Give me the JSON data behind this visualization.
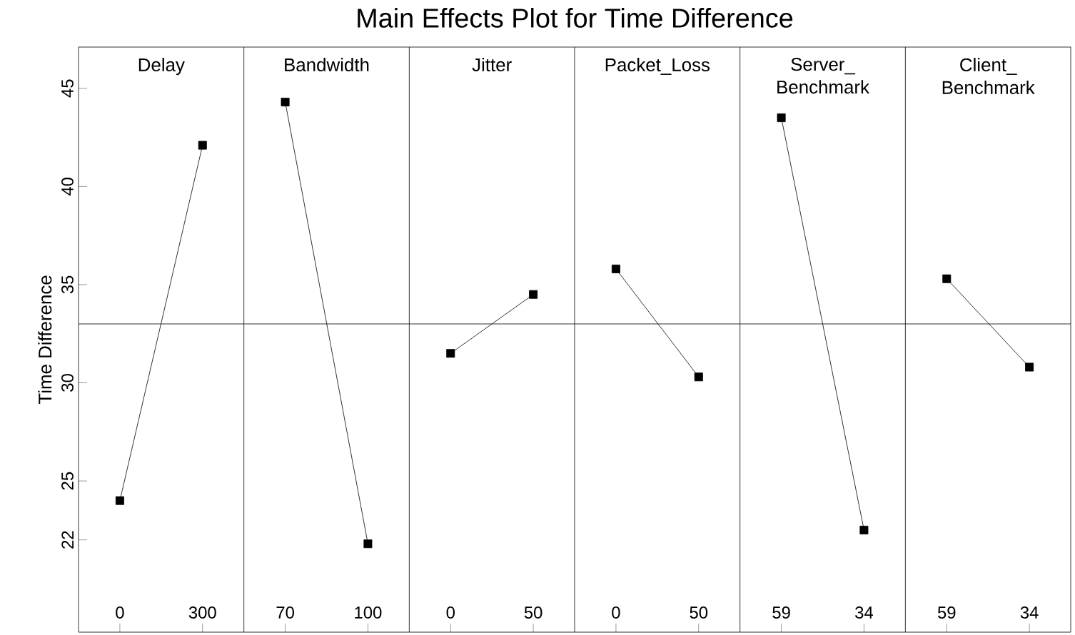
{
  "chart_data": {
    "type": "line",
    "title": "Main Effects Plot for Time Difference",
    "ylabel": "Time Difference",
    "annotations": [
      "Delay",
      "Bandwidth",
      "Jitter",
      "Packet_Loss",
      "Server_ Benchmark",
      "Client_ Benchmark"
    ],
    "categories": [
      "0",
      "300",
      "70",
      "100",
      "0",
      "50",
      "0",
      "50",
      "59",
      "34",
      "59",
      "34"
    ],
    "color": "#000000",
    "marker": "square",
    "ylim": [
      17.3,
      47.1
    ],
    "yticks": [
      22,
      25,
      30,
      35,
      40,
      45
    ],
    "ref_lines": [
      {
        "axis": "y",
        "value": 33
      }
    ],
    "series": [
      {
        "values": [
          24.0,
          42.1,
          null,
          null,
          null,
          null,
          null,
          null,
          null,
          null,
          null,
          null
        ]
      },
      {
        "values": [
          null,
          null,
          44.3,
          21.8,
          null,
          null,
          null,
          null,
          null,
          null,
          null,
          null
        ]
      },
      {
        "values": [
          null,
          null,
          null,
          null,
          31.5,
          34.5,
          null,
          null,
          null,
          null,
          null,
          null
        ]
      },
      {
        "values": [
          null,
          null,
          null,
          null,
          null,
          null,
          35.8,
          30.3,
          null,
          null,
          null,
          null
        ]
      },
      {
        "values": [
          null,
          null,
          null,
          null,
          null,
          null,
          null,
          null,
          43.5,
          22.5,
          null,
          null
        ]
      },
      {
        "values": [
          null,
          null,
          null,
          null,
          null,
          null,
          null,
          null,
          null,
          null,
          35.3,
          30.8
        ]
      }
    ]
  }
}
